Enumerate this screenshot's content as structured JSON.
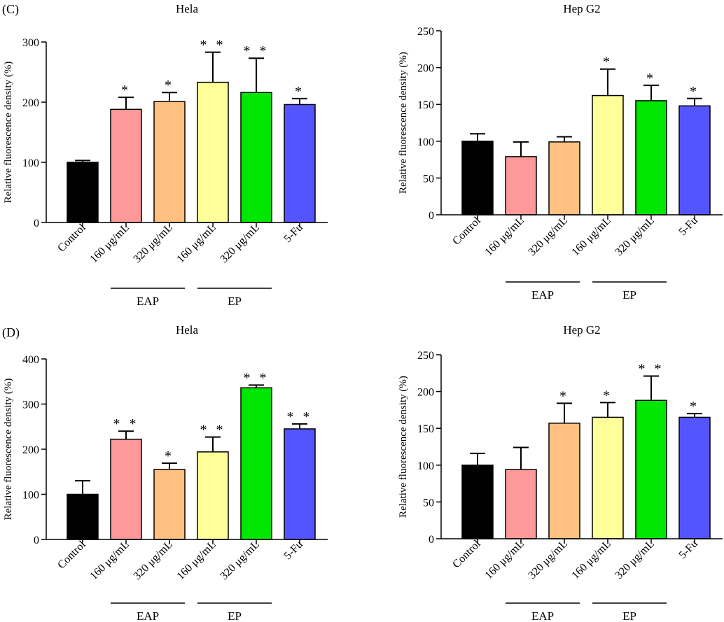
{
  "panel_labels": [
    "(C)",
    "(D)"
  ],
  "chart_data": [
    {
      "type": "bar",
      "panel": "(C)",
      "title": "Hela",
      "ylabel": "Relative fluorescence density (%)",
      "ylim": [
        0,
        300
      ],
      "yticks": [
        0,
        100,
        200,
        300
      ],
      "categories": [
        "Control",
        "160 μg/mL",
        "320 μg/mL",
        "160 μg/mL",
        "320 μg/mL",
        "5-Fu"
      ],
      "values": [
        100,
        188,
        201,
        233,
        216,
        196
      ],
      "errors": [
        3,
        20,
        15,
        50,
        57,
        10
      ],
      "significance": [
        "",
        "*",
        "*",
        "**",
        "**",
        "*"
      ],
      "colors": [
        "#000000",
        "#ff9999",
        "#ffc080",
        "#ffff99",
        "#00e600",
        "#5555ff"
      ],
      "groups": [
        {
          "label": "EAP",
          "from": 1,
          "to": 2
        },
        {
          "label": "EP",
          "from": 3,
          "to": 4
        }
      ]
    },
    {
      "type": "bar",
      "panel": "(C)",
      "title": "Hep G2",
      "ylabel": "Relative fluorescence density (%)",
      "ylim": [
        0,
        250
      ],
      "yticks": [
        0,
        50,
        100,
        150,
        200,
        250
      ],
      "categories": [
        "Control",
        "160 μg/mL",
        "320 μg/mL",
        "160 μg/mL",
        "320 μg/mL",
        "5-Fu"
      ],
      "values": [
        100,
        79,
        99,
        162,
        155,
        148
      ],
      "errors": [
        10,
        20,
        7,
        36,
        21,
        10
      ],
      "significance": [
        "",
        "",
        "",
        "*",
        "*",
        "*"
      ],
      "colors": [
        "#000000",
        "#ff9999",
        "#ffc080",
        "#ffff99",
        "#00e600",
        "#5555ff"
      ],
      "groups": [
        {
          "label": "EAP",
          "from": 1,
          "to": 2
        },
        {
          "label": "EP",
          "from": 3,
          "to": 4
        }
      ]
    },
    {
      "type": "bar",
      "panel": "(D)",
      "title": "Hela",
      "ylabel": "Relative fluorescence density (%)",
      "ylim": [
        0,
        400
      ],
      "yticks": [
        0,
        100,
        200,
        300,
        400
      ],
      "categories": [
        "Control",
        "160 μg/mL",
        "320 μg/mL",
        "160 μg/mL",
        "320 μg/mL",
        "5-Fu"
      ],
      "values": [
        100,
        222,
        155,
        194,
        336,
        245
      ],
      "errors": [
        30,
        18,
        14,
        33,
        6,
        11
      ],
      "significance": [
        "",
        "**",
        "*",
        "**",
        "**",
        "**"
      ],
      "colors": [
        "#000000",
        "#ff9999",
        "#ffc080",
        "#ffff99",
        "#00e600",
        "#5555ff"
      ],
      "groups": [
        {
          "label": "EAP",
          "from": 1,
          "to": 2
        },
        {
          "label": "EP",
          "from": 3,
          "to": 4
        }
      ]
    },
    {
      "type": "bar",
      "panel": "(D)",
      "title": "Hep G2",
      "ylabel": "Relative fluorescence density (%)",
      "ylim": [
        0,
        250
      ],
      "yticks": [
        0,
        50,
        100,
        150,
        200,
        250
      ],
      "categories": [
        "Control",
        "160 μg/mL",
        "320 μg/mL",
        "160 μg/mL",
        "320 μg/mL",
        "5-Fu"
      ],
      "values": [
        100,
        94,
        157,
        165,
        188,
        165
      ],
      "errors": [
        16,
        30,
        27,
        20,
        33,
        5
      ],
      "significance": [
        "",
        "",
        "*",
        "*",
        "**",
        "*"
      ],
      "colors": [
        "#000000",
        "#ff9999",
        "#ffc080",
        "#ffff99",
        "#00e600",
        "#5555ff"
      ],
      "groups": [
        {
          "label": "EAP",
          "from": 1,
          "to": 2
        },
        {
          "label": "EP",
          "from": 3,
          "to": 4
        }
      ]
    }
  ]
}
